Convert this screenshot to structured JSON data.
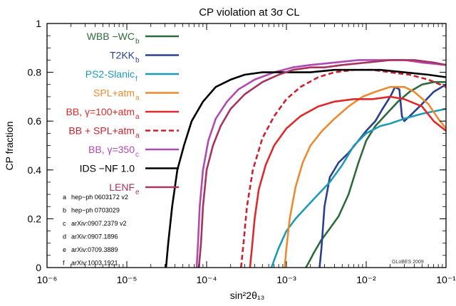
{
  "chart_data": {
    "type": "line",
    "title": "CP violation at 3σ CL",
    "xlabel": "sin²2θ₁₃",
    "ylabel": "CP fraction",
    "xscale": "log",
    "xlim": [
      1e-06,
      0.1
    ],
    "ylim": [
      0,
      1
    ],
    "x_ticks": [
      "10⁻⁶",
      "10⁻⁵",
      "10⁻⁴",
      "10⁻³",
      "10⁻²",
      "10⁻¹"
    ],
    "y_ticks": [
      "0",
      "0.2",
      "0.4",
      "0.6",
      "0.8",
      "1"
    ],
    "grid": false,
    "legend_position": "left, upper",
    "series": [
      {
        "name": "WBB −WC",
        "sub": "b",
        "color": "#2e6b3a",
        "dash": false,
        "points": [
          [
            0.00175,
            0
          ],
          [
            0.0019,
            0.02
          ],
          [
            0.0022,
            0.06
          ],
          [
            0.0027,
            0.11
          ],
          [
            0.0035,
            0.16
          ],
          [
            0.0045,
            0.21
          ],
          [
            0.006,
            0.3
          ],
          [
            0.008,
            0.43
          ],
          [
            0.01,
            0.52
          ],
          [
            0.013,
            0.58
          ],
          [
            0.018,
            0.63
          ],
          [
            0.025,
            0.68
          ],
          [
            0.035,
            0.72
          ],
          [
            0.05,
            0.75
          ],
          [
            0.07,
            0.76
          ],
          [
            0.1,
            0.76
          ]
        ]
      },
      {
        "name": "T2KK",
        "sub": "b",
        "color": "#2b3f8f",
        "dash": false,
        "points": [
          [
            0.0026,
            0
          ],
          [
            0.00275,
            0.08
          ],
          [
            0.003,
            0.25
          ],
          [
            0.0035,
            0.37
          ],
          [
            0.0045,
            0.43
          ],
          [
            0.006,
            0.47
          ],
          [
            0.008,
            0.52
          ],
          [
            0.01,
            0.56
          ],
          [
            0.013,
            0.6
          ],
          [
            0.016,
            0.65
          ],
          [
            0.02,
            0.7
          ],
          [
            0.023,
            0.74
          ],
          [
            0.026,
            0.73
          ],
          [
            0.028,
            0.62
          ],
          [
            0.03,
            0.6
          ],
          [
            0.035,
            0.62
          ],
          [
            0.05,
            0.67
          ],
          [
            0.07,
            0.72
          ],
          [
            0.1,
            0.75
          ]
        ]
      },
      {
        "name": "PS2-Slanic",
        "sub": "f",
        "color": "#1c9bb8",
        "dash": false,
        "points": [
          [
            0.00065,
            0
          ],
          [
            0.0007,
            0.03
          ],
          [
            0.0008,
            0.08
          ],
          [
            0.001,
            0.15
          ],
          [
            0.0013,
            0.2
          ],
          [
            0.0018,
            0.25
          ],
          [
            0.0025,
            0.3
          ],
          [
            0.0035,
            0.35
          ],
          [
            0.005,
            0.42
          ],
          [
            0.007,
            0.5
          ],
          [
            0.01,
            0.55
          ],
          [
            0.015,
            0.58
          ],
          [
            0.02,
            0.59
          ],
          [
            0.03,
            0.61
          ],
          [
            0.05,
            0.63
          ],
          [
            0.1,
            0.65
          ]
        ]
      },
      {
        "name": "SPL+atm",
        "sub": "a",
        "color": "#ec8a2e",
        "dash": false,
        "points": [
          [
            0.00095,
            0
          ],
          [
            0.001,
            0.08
          ],
          [
            0.0011,
            0.2
          ],
          [
            0.0013,
            0.33
          ],
          [
            0.0016,
            0.43
          ],
          [
            0.002,
            0.5
          ],
          [
            0.0028,
            0.56
          ],
          [
            0.004,
            0.61
          ],
          [
            0.006,
            0.66
          ],
          [
            0.009,
            0.7
          ],
          [
            0.013,
            0.72
          ],
          [
            0.02,
            0.74
          ],
          [
            0.03,
            0.74
          ],
          [
            0.04,
            0.72
          ],
          [
            0.06,
            0.67
          ],
          [
            0.08,
            0.61
          ],
          [
            0.1,
            0.57
          ]
        ]
      },
      {
        "name": "BB, γ=100+atm",
        "sub": "a",
        "color": "#de2a2a",
        "dash": false,
        "points": [
          [
            0.00035,
            0
          ],
          [
            0.00037,
            0.08
          ],
          [
            0.0004,
            0.2
          ],
          [
            0.00045,
            0.32
          ],
          [
            0.00055,
            0.42
          ],
          [
            0.0007,
            0.5
          ],
          [
            0.001,
            0.57
          ],
          [
            0.0015,
            0.62
          ],
          [
            0.0025,
            0.66
          ],
          [
            0.004,
            0.68
          ],
          [
            0.007,
            0.69
          ],
          [
            0.012,
            0.69
          ],
          [
            0.02,
            0.7
          ],
          [
            0.03,
            0.69
          ],
          [
            0.05,
            0.66
          ],
          [
            0.07,
            0.6
          ],
          [
            0.1,
            0.56
          ]
        ]
      },
      {
        "name": "BB + SPL+atm",
        "sub": "a",
        "color": "#cc2030",
        "dash": true,
        "points": [
          [
            0.00027,
            0
          ],
          [
            0.00029,
            0.1
          ],
          [
            0.00032,
            0.25
          ],
          [
            0.00038,
            0.4
          ],
          [
            0.0005,
            0.53
          ],
          [
            0.0007,
            0.62
          ],
          [
            0.001,
            0.69
          ],
          [
            0.0015,
            0.74
          ],
          [
            0.0025,
            0.78
          ],
          [
            0.004,
            0.8
          ],
          [
            0.007,
            0.81
          ],
          [
            0.012,
            0.81
          ],
          [
            0.02,
            0.8
          ],
          [
            0.035,
            0.79
          ],
          [
            0.06,
            0.77
          ],
          [
            0.1,
            0.74
          ]
        ]
      },
      {
        "name": "BB, γ=350",
        "sub": "c",
        "color": "#b04ab3",
        "dash": false,
        "points": [
          [
            7.5e-05,
            0
          ],
          [
            7.8e-05,
            0.1
          ],
          [
            8.2e-05,
            0.25
          ],
          [
            9e-05,
            0.4
          ],
          [
            0.000105,
            0.52
          ],
          [
            0.00013,
            0.61
          ],
          [
            0.00018,
            0.68
          ],
          [
            0.00025,
            0.73
          ],
          [
            0.0004,
            0.77
          ],
          [
            0.0007,
            0.8
          ],
          [
            0.0012,
            0.82
          ],
          [
            0.002,
            0.83
          ],
          [
            0.004,
            0.84
          ],
          [
            0.008,
            0.85
          ],
          [
            0.015,
            0.85
          ],
          [
            0.03,
            0.85
          ],
          [
            0.05,
            0.84
          ],
          [
            0.1,
            0.83
          ]
        ]
      },
      {
        "name": "IDS −NF  1.0",
        "sub": "",
        "color": "#000000",
        "dash": false,
        "points": [
          [
            3.1e-05,
            0
          ],
          [
            3.3e-05,
            0.1
          ],
          [
            3.7e-05,
            0.25
          ],
          [
            4.3e-05,
            0.4
          ],
          [
            5.2e-05,
            0.5
          ],
          [
            6.5e-05,
            0.6
          ],
          [
            9e-05,
            0.68
          ],
          [
            0.00013,
            0.74
          ],
          [
            0.0002,
            0.77
          ],
          [
            0.0003,
            0.79
          ],
          [
            0.0005,
            0.8
          ],
          [
            0.001,
            0.8
          ],
          [
            0.002,
            0.8
          ],
          [
            0.004,
            0.81
          ],
          [
            0.008,
            0.81
          ],
          [
            0.015,
            0.81
          ],
          [
            0.03,
            0.8
          ],
          [
            0.06,
            0.79
          ],
          [
            0.1,
            0.78
          ]
        ]
      },
      {
        "name": "LENF",
        "sub": "e",
        "color": "#a83260",
        "dash": false,
        "points": [
          [
            8e-05,
            0
          ],
          [
            8.5e-05,
            0.1
          ],
          [
            9e-05,
            0.25
          ],
          [
            0.0001,
            0.4
          ],
          [
            0.00012,
            0.5
          ],
          [
            0.00015,
            0.58
          ],
          [
            0.0002,
            0.65
          ],
          [
            0.0003,
            0.71
          ],
          [
            0.0005,
            0.76
          ],
          [
            0.0008,
            0.79
          ],
          [
            0.0012,
            0.81
          ],
          [
            0.002,
            0.82
          ],
          [
            0.003,
            0.82
          ],
          [
            0.005,
            0.83
          ],
          [
            0.01,
            0.84
          ],
          [
            0.02,
            0.85
          ],
          [
            0.04,
            0.85
          ],
          [
            0.07,
            0.84
          ],
          [
            0.1,
            0.83
          ]
        ]
      }
    ],
    "references": [
      {
        "key": "a",
        "text": "hep−ph 0603172 v2"
      },
      {
        "key": "b",
        "text": "hep−ph 0703029"
      },
      {
        "key": "c",
        "text": "arXiv:0907.2379 v2"
      },
      {
        "key": "d",
        "text": "arXiv:0907.1896"
      },
      {
        "key": "e",
        "text": "arXiv:0709.3889"
      },
      {
        "key": "f",
        "text": "arXiv:1003.1921"
      }
    ],
    "watermark": "GLoBES  2009"
  }
}
